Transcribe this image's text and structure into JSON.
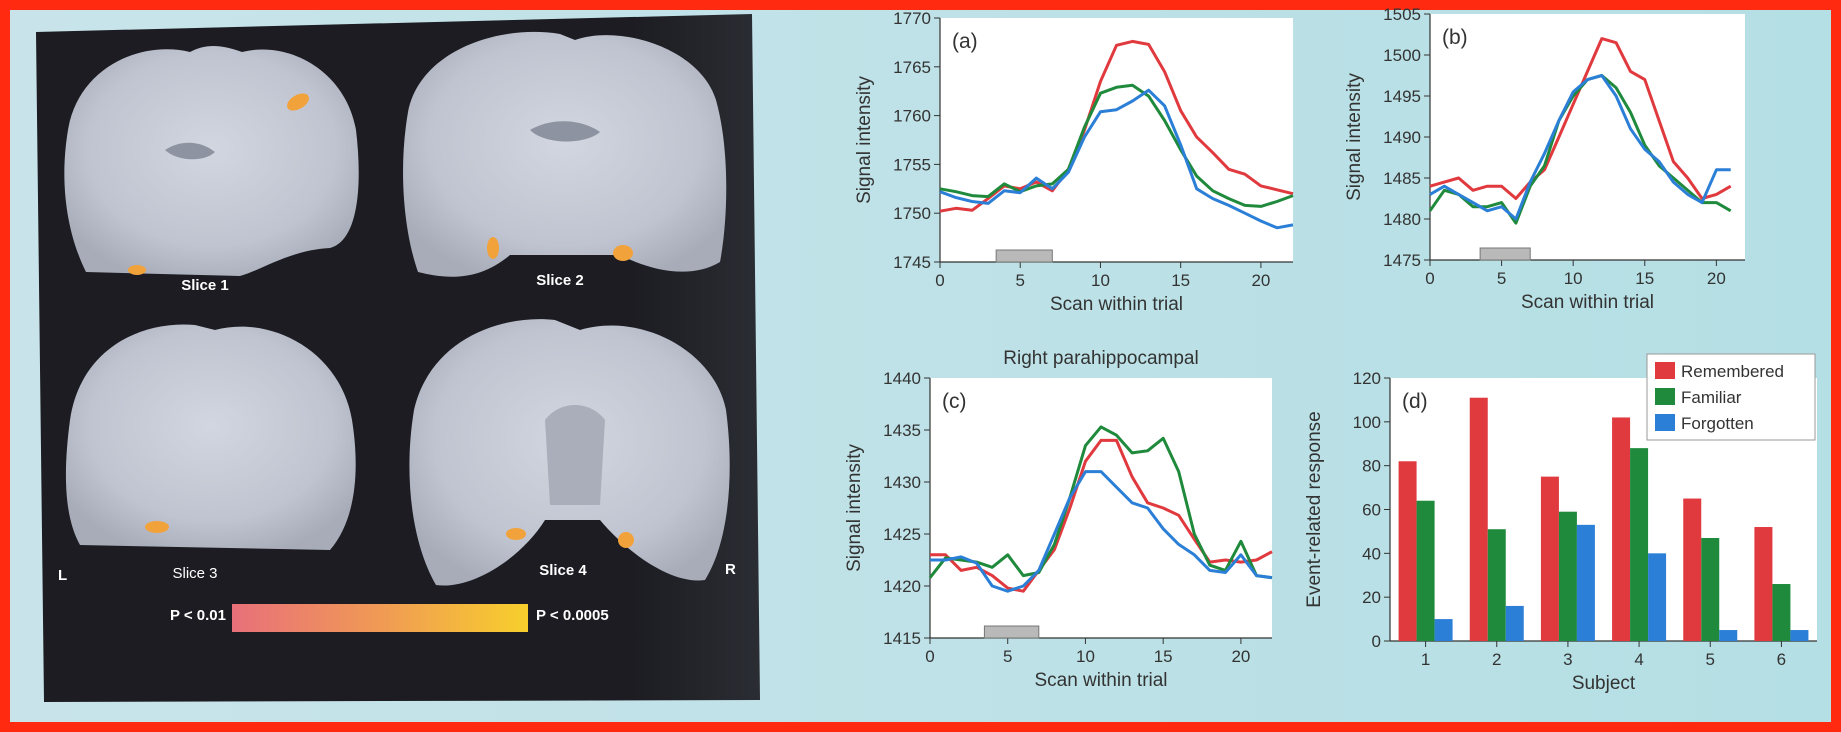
{
  "brain_panel": {
    "slices": [
      "Slice 1",
      "Slice 2",
      "Slice 3",
      "Slice 4"
    ],
    "left_marker": "L",
    "right_marker": "R",
    "scale_low": "P < 0.01",
    "scale_high": "P < 0.0005"
  },
  "colors": {
    "remembered": "#e0393e",
    "familiar": "#1f8a3c",
    "forgotten": "#2b7fd6",
    "stimulus_bar": "#b9b9b9"
  },
  "chart_data": [
    {
      "type": "line",
      "panel_label": "(a)",
      "title": "",
      "xlabel": "Scan within trial",
      "ylabel": "Signal intensity",
      "xlim": [
        0,
        22
      ],
      "ylim": [
        1745,
        1770
      ],
      "x_ticks": [
        0,
        5,
        10,
        15,
        20
      ],
      "y_ticks": [
        1745,
        1750,
        1755,
        1760,
        1765,
        1770
      ],
      "stimulus_interval": [
        3.5,
        7
      ],
      "x": [
        0,
        1,
        2,
        3,
        4,
        5,
        6,
        7,
        8,
        9,
        10,
        11,
        12,
        13,
        14,
        15,
        16,
        17,
        18,
        19,
        20,
        21,
        22
      ],
      "series": [
        {
          "key": "remembered",
          "values": [
            1750.2,
            1750.5,
            1750.3,
            1751.5,
            1752.8,
            1752.5,
            1753.2,
            1752.3,
            1754.5,
            1758.5,
            1763.5,
            1767.2,
            1767.6,
            1767.3,
            1764.5,
            1760.5,
            1757.8,
            1756.2,
            1754.5,
            1754,
            1752.8,
            1752.4,
            1752
          ]
        },
        {
          "key": "familiar",
          "values": [
            1752.5,
            1752.2,
            1751.8,
            1751.7,
            1753,
            1752.2,
            1752.8,
            1753,
            1754.5,
            1758.8,
            1762.3,
            1762.9,
            1763.1,
            1762,
            1759.5,
            1756.5,
            1753.8,
            1752.3,
            1751.5,
            1750.8,
            1750.7,
            1751.2,
            1751.8
          ]
        },
        {
          "key": "forgotten",
          "values": [
            1752.2,
            1751.6,
            1751.2,
            1751,
            1752.3,
            1752.1,
            1753.6,
            1752.5,
            1754.2,
            1757.8,
            1760.4,
            1760.6,
            1761.5,
            1762.6,
            1761,
            1757,
            1752.5,
            1751.5,
            1750.8,
            1750,
            1749.2,
            1748.5,
            1748.8
          ]
        }
      ]
    },
    {
      "type": "line",
      "panel_label": "(b)",
      "title": "",
      "xlabel": "Scan within trial",
      "ylabel": "Signal intensity",
      "xlim": [
        0,
        22
      ],
      "ylim": [
        1475,
        1505
      ],
      "x_ticks": [
        0,
        5,
        10,
        15,
        20
      ],
      "y_ticks": [
        1475,
        1480,
        1485,
        1490,
        1495,
        1500,
        1505
      ],
      "stimulus_interval": [
        3.5,
        7
      ],
      "x": [
        0,
        1,
        2,
        3,
        4,
        5,
        6,
        7,
        8,
        9,
        10,
        11,
        12,
        13,
        14,
        15,
        16,
        17,
        18,
        19,
        20,
        21
      ],
      "series": [
        {
          "key": "remembered",
          "values": [
            1484,
            1484.5,
            1485,
            1483.5,
            1484,
            1484,
            1482.5,
            1484.5,
            1486,
            1490,
            1494,
            1498,
            1502,
            1501.5,
            1498,
            1497,
            1492,
            1487,
            1485,
            1482.5,
            1483,
            1484
          ]
        },
        {
          "key": "familiar",
          "values": [
            1481,
            1483.5,
            1483,
            1481.5,
            1481.5,
            1482,
            1479.5,
            1484,
            1486.5,
            1492,
            1495,
            1497,
            1497.5,
            1496,
            1493,
            1489,
            1486.5,
            1485,
            1483.5,
            1482,
            1482,
            1481
          ]
        },
        {
          "key": "forgotten",
          "values": [
            1483,
            1484,
            1483,
            1482,
            1481,
            1481.5,
            1480,
            1484.5,
            1488,
            1492,
            1495.5,
            1497,
            1497.5,
            1495,
            1491,
            1488.5,
            1487,
            1484.5,
            1483,
            1482,
            1486,
            1486
          ]
        }
      ]
    },
    {
      "type": "line",
      "panel_label": "(c)",
      "title": "Right parahippocampal",
      "xlabel": "Scan within trial",
      "ylabel": "Signal intensity",
      "xlim": [
        0,
        22
      ],
      "ylim": [
        1415,
        1440
      ],
      "x_ticks": [
        0,
        5,
        10,
        15,
        20
      ],
      "y_ticks": [
        1415,
        1420,
        1425,
        1430,
        1435,
        1440
      ],
      "stimulus_interval": [
        3.5,
        7
      ],
      "x": [
        0,
        1,
        2,
        3,
        4,
        5,
        6,
        7,
        8,
        9,
        10,
        11,
        12,
        13,
        14,
        15,
        16,
        17,
        18,
        19,
        20,
        21,
        22
      ],
      "series": [
        {
          "key": "remembered",
          "values": [
            1423,
            1423,
            1421.5,
            1421.8,
            1421,
            1419.8,
            1419.5,
            1421.5,
            1423.5,
            1427.5,
            1432,
            1434,
            1434,
            1430.5,
            1428,
            1427.5,
            1426.8,
            1424.5,
            1422.3,
            1422.5,
            1422.3,
            1422.5,
            1423.3
          ]
        },
        {
          "key": "familiar",
          "values": [
            1420.8,
            1422.7,
            1422.5,
            1422.3,
            1421.8,
            1423,
            1421,
            1421.3,
            1424,
            1428.5,
            1433.5,
            1435.3,
            1434.5,
            1432.8,
            1433,
            1434.2,
            1431,
            1425,
            1422,
            1421.5,
            1424.3,
            1421,
            1420.8
          ]
        },
        {
          "key": "forgotten",
          "values": [
            1422.5,
            1422.5,
            1422.8,
            1422.2,
            1420,
            1419.5,
            1420,
            1421.5,
            1425,
            1428.5,
            1431,
            1431,
            1429.5,
            1428,
            1427.5,
            1425.5,
            1424,
            1423,
            1421.5,
            1421.3,
            1423,
            1421,
            1420.8
          ]
        }
      ]
    },
    {
      "type": "bar",
      "panel_label": "(d)",
      "title": "",
      "xlabel": "Subject",
      "ylabel": "Event-related response",
      "ylim": [
        0,
        120
      ],
      "y_ticks": [
        0,
        20,
        40,
        60,
        80,
        100,
        120
      ],
      "categories": [
        "1",
        "2",
        "3",
        "4",
        "5",
        "6"
      ],
      "legend_position": "top-right",
      "series": [
        {
          "key": "remembered",
          "name": "Remembered",
          "values": [
            82,
            111,
            75,
            102,
            65,
            52
          ]
        },
        {
          "key": "familiar",
          "name": "Familiar",
          "values": [
            64,
            51,
            59,
            88,
            47,
            26
          ]
        },
        {
          "key": "forgotten",
          "name": "Forgotten",
          "values": [
            10,
            16,
            53,
            40,
            5,
            5
          ]
        }
      ]
    }
  ]
}
